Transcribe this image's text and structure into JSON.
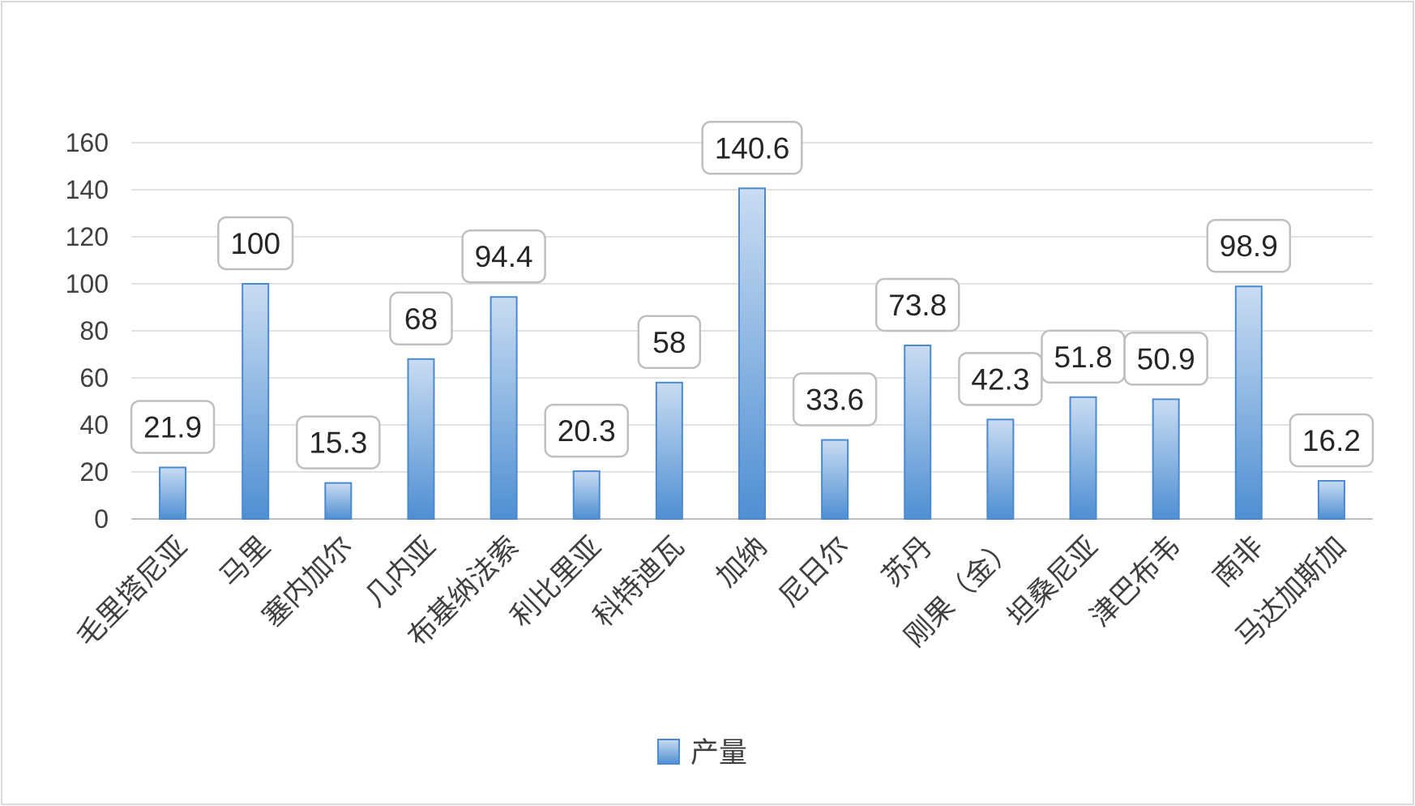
{
  "chart_data": {
    "type": "bar",
    "categories": [
      "毛里塔尼亚",
      "马里",
      "塞内加尔",
      "几内亚",
      "布基纳法索",
      "利比里亚",
      "科特迪瓦",
      "加纳",
      "尼日尔",
      "苏丹",
      "刚果（金）",
      "坦桑尼亚",
      "津巴布韦",
      "南非",
      "马达加斯加"
    ],
    "series": [
      {
        "name": "产量",
        "values": [
          21.9,
          100,
          15.3,
          68,
          94.4,
          20.3,
          58,
          140.6,
          33.6,
          73.8,
          42.3,
          51.8,
          50.9,
          98.9,
          16.2
        ]
      }
    ],
    "data_labels": [
      "21.9",
      "100",
      "15.3",
      "68",
      "94.4",
      "20.3",
      "58",
      "140.6",
      "33.6",
      "73.8",
      "42.3",
      "51.8",
      "50.9",
      "98.9",
      "16.2"
    ],
    "yticks": [
      0,
      20,
      40,
      60,
      80,
      100,
      120,
      140,
      160
    ],
    "ylim": [
      0,
      160
    ],
    "grid": true,
    "legend_position": "bottom",
    "colors": {
      "bar_top": "#c9dcf2",
      "bar_bottom": "#4f8fd3",
      "bar_edge": "#4a8ad0"
    }
  }
}
